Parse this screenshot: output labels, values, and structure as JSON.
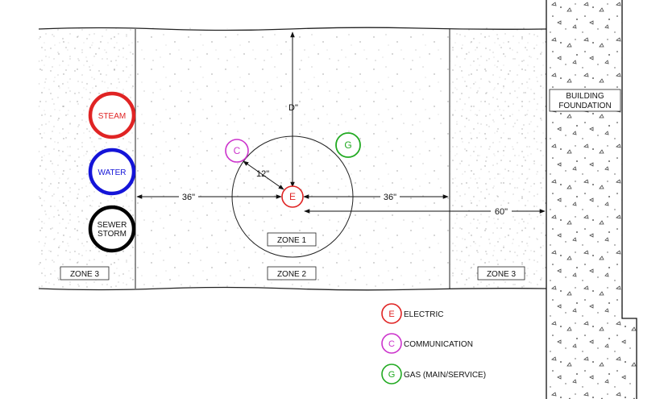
{
  "utilities": {
    "steam": {
      "label": "STEAM",
      "color": "#e02424"
    },
    "water": {
      "label": "WATER",
      "color": "#1414d8"
    },
    "sewer": {
      "label_line1": "SEWER",
      "label_line2": "STORM",
      "color": "#000000"
    }
  },
  "markers": {
    "electric": {
      "letter": "E",
      "color": "#e02424"
    },
    "communication": {
      "letter": "C",
      "color": "#cc33cc"
    },
    "gas": {
      "letter": "G",
      "color": "#22aa22"
    }
  },
  "zones": {
    "zone1": "ZONE 1",
    "zone2": "ZONE 2",
    "zone3_left": "ZONE 3",
    "zone3_right": "ZONE 3"
  },
  "dimensions": {
    "depth": "D\"",
    "c_offset": "12\"",
    "left_36": "36\"",
    "right_36": "36\"",
    "foundation_60": "60\""
  },
  "building": {
    "line1": "BUILDING",
    "line2": "FOUNDATION"
  },
  "legend": [
    {
      "letter": "E",
      "label": "ELECTRIC",
      "color": "#e02424"
    },
    {
      "letter": "C",
      "label": "COMMUNICATION",
      "color": "#cc33cc"
    },
    {
      "letter": "G",
      "label": "GAS (MAIN/SERVICE)",
      "color": "#22aa22"
    }
  ]
}
